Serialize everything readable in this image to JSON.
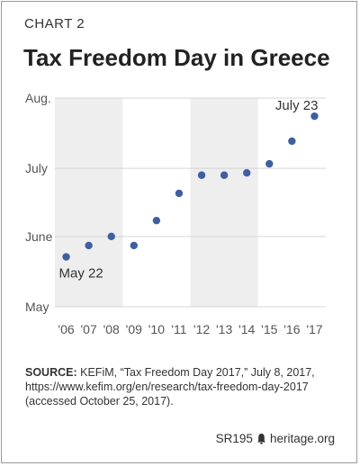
{
  "header": {
    "kicker": "CHART 2",
    "title": "Tax Freedom Day in Greece"
  },
  "chart_data": {
    "type": "scatter",
    "title": "Tax Freedom Day in Greece",
    "categories": [
      "'06",
      "'07",
      "'08",
      "'09",
      "'10",
      "'11",
      "'12",
      "'13",
      "'14",
      "'15",
      "'16",
      "'17"
    ],
    "y_ticks": [
      "Aug.",
      "July",
      "June",
      "May"
    ],
    "y_tick_values": [
      92,
      61,
      31,
      0
    ],
    "ylim": [
      0,
      92
    ],
    "values": [
      22,
      27,
      31,
      27,
      38,
      50,
      58,
      58,
      59,
      63,
      73,
      84
    ],
    "dates": [
      "May 22",
      "May 27",
      "May 31",
      "May 27",
      "June 7",
      "June 19",
      "June 27",
      "June 27",
      "June 28",
      "July 2",
      "July 12",
      "July 23"
    ],
    "annotations": [
      {
        "index": 0,
        "text": "May 22"
      },
      {
        "index": 11,
        "text": "July 23"
      }
    ],
    "shaded_ranges": [
      [
        0,
        3
      ],
      [
        6,
        9
      ]
    ],
    "grid": true,
    "point_color": "#3e5fa0",
    "shade_color": "#eeeeee",
    "grid_color": "#d5d5d5"
  },
  "source": {
    "label": "SOURCE:",
    "text": " KEFiM, “Tax Freedom Day 2017,” July 8, 2017, https://www.kefim.org/en/research/tax-freedom-day-2017 (accessed October 25, 2017)."
  },
  "footer": {
    "code": "SR195",
    "site": "heritage.org",
    "icon": "bell-icon"
  }
}
